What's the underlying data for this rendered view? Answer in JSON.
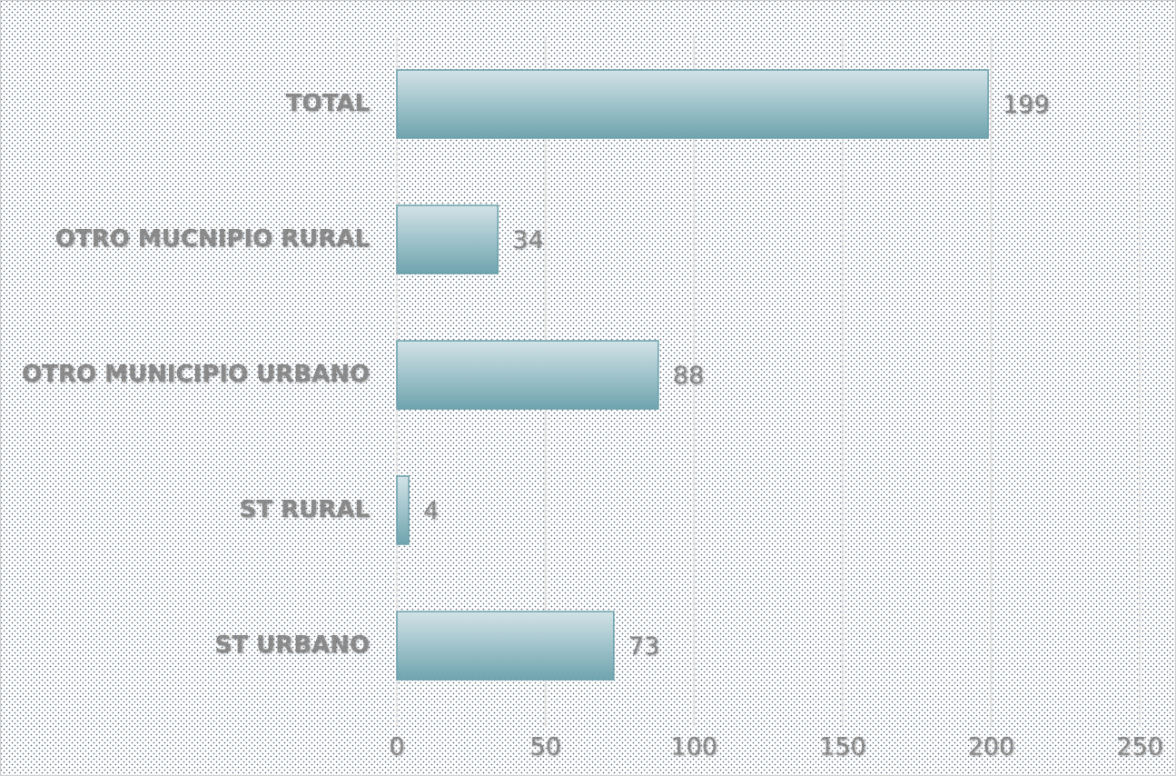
{
  "chart_data": {
    "type": "bar",
    "orientation": "horizontal",
    "categories": [
      "TOTAL",
      "OTRO MUCNIPIO RURAL",
      "OTRO MUNICIPIO URBANO",
      "ST RURAL",
      "ST URBANO"
    ],
    "values": [
      199,
      34,
      88,
      4,
      73
    ],
    "color": "#7aaeb8",
    "xlim": [
      0,
      250
    ],
    "xticks": [
      0,
      50,
      100,
      150,
      200,
      250
    ],
    "grid": true
  }
}
